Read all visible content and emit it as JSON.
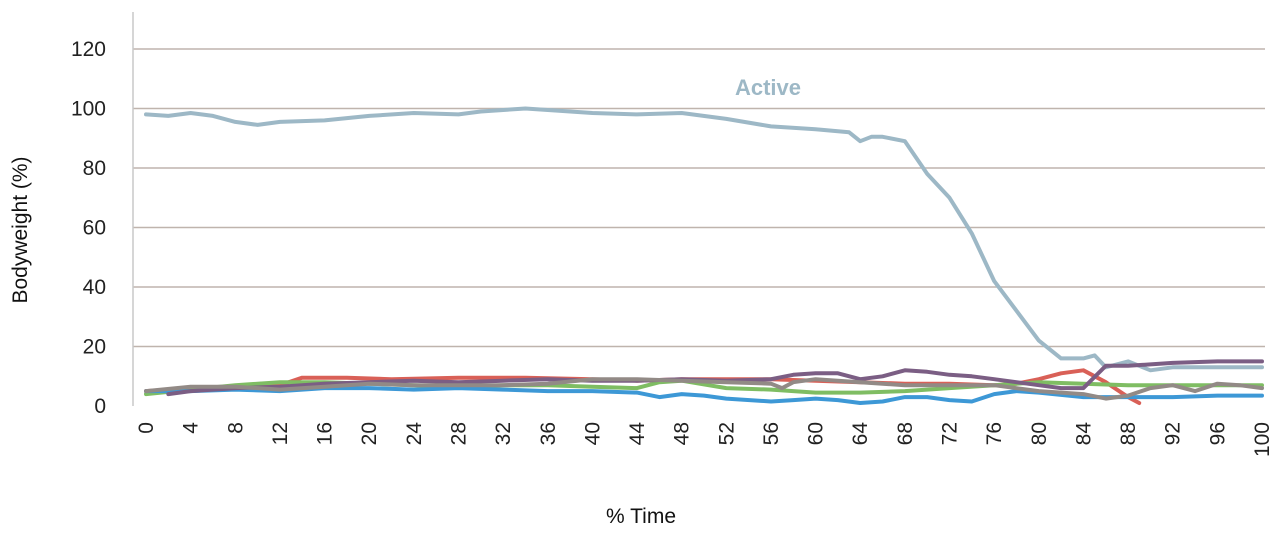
{
  "chart_data": {
    "type": "line",
    "xlabel": "% Time",
    "ylabel": "Bodyweight (%)",
    "xlim": [
      0,
      100
    ],
    "ylim": [
      0,
      120
    ],
    "x_ticks": [
      "0",
      "4",
      "8",
      "12",
      "16",
      "20",
      "24",
      "28",
      "32",
      "36",
      "40",
      "44",
      "48",
      "52",
      "56",
      "60",
      "64",
      "68",
      "72",
      "76",
      "80",
      "84",
      "88",
      "92",
      "96",
      "100"
    ],
    "y_ticks": [
      "0",
      "20",
      "40",
      "60",
      "80",
      "100",
      "120"
    ],
    "grid": "horizontal",
    "annotation": {
      "text": "Active",
      "color": "#9db8c6"
    },
    "series": [
      {
        "color": "#9db8c6",
        "points": [
          [
            0,
            98
          ],
          [
            2,
            97.5
          ],
          [
            4,
            98.5
          ],
          [
            6,
            97.5
          ],
          [
            8,
            95.5
          ],
          [
            10,
            94.5
          ],
          [
            12,
            95.5
          ],
          [
            16,
            96
          ],
          [
            20,
            97.5
          ],
          [
            24,
            98.5
          ],
          [
            28,
            98
          ],
          [
            30,
            99
          ],
          [
            34,
            100
          ],
          [
            36,
            99.5
          ],
          [
            40,
            98.5
          ],
          [
            44,
            98
          ],
          [
            48,
            98.5
          ],
          [
            52,
            96.5
          ],
          [
            56,
            94
          ],
          [
            60,
            93
          ],
          [
            63,
            92
          ],
          [
            64,
            89
          ],
          [
            65,
            90.5
          ],
          [
            66,
            90.5
          ],
          [
            68,
            89
          ],
          [
            70,
            78
          ],
          [
            72,
            70
          ],
          [
            74,
            58
          ],
          [
            76,
            42
          ],
          [
            78,
            32
          ],
          [
            80,
            22
          ],
          [
            82,
            16
          ],
          [
            84,
            16
          ],
          [
            85,
            17
          ],
          [
            86,
            13
          ],
          [
            88,
            15
          ],
          [
            90,
            12
          ],
          [
            92,
            13
          ],
          [
            96,
            13
          ],
          [
            100,
            13
          ]
        ]
      },
      {
        "color": "#d96057",
        "points": [
          [
            0,
            5
          ],
          [
            4,
            6
          ],
          [
            8,
            6.5
          ],
          [
            12,
            7
          ],
          [
            14,
            9.5
          ],
          [
            18,
            9.5
          ],
          [
            22,
            9
          ],
          [
            28,
            9.5
          ],
          [
            34,
            9.5
          ],
          [
            40,
            9
          ],
          [
            44,
            8.5
          ],
          [
            48,
            9
          ],
          [
            52,
            9
          ],
          [
            56,
            9
          ],
          [
            60,
            8.5
          ],
          [
            64,
            8
          ],
          [
            68,
            7.5
          ],
          [
            72,
            7.5
          ],
          [
            76,
            7
          ],
          [
            78,
            7.5
          ],
          [
            80,
            9
          ],
          [
            82,
            11
          ],
          [
            84,
            12
          ],
          [
            86,
            8
          ],
          [
            88,
            3
          ],
          [
            89,
            1
          ]
        ]
      },
      {
        "color": "#7fbd63",
        "points": [
          [
            0,
            4
          ],
          [
            4,
            5.5
          ],
          [
            8,
            7
          ],
          [
            12,
            8
          ],
          [
            16,
            8
          ],
          [
            20,
            7.5
          ],
          [
            24,
            7
          ],
          [
            28,
            6.5
          ],
          [
            32,
            7
          ],
          [
            36,
            7
          ],
          [
            40,
            6.5
          ],
          [
            44,
            6
          ],
          [
            46,
            8
          ],
          [
            48,
            8.5
          ],
          [
            52,
            6
          ],
          [
            56,
            5.5
          ],
          [
            60,
            4.5
          ],
          [
            64,
            4.5
          ],
          [
            68,
            5
          ],
          [
            72,
            6
          ],
          [
            76,
            7
          ],
          [
            80,
            8
          ],
          [
            84,
            7.5
          ],
          [
            88,
            7
          ],
          [
            92,
            7
          ],
          [
            96,
            7
          ],
          [
            100,
            7
          ]
        ]
      },
      {
        "color": "#3d98d6",
        "points": [
          [
            0,
            5
          ],
          [
            4,
            5
          ],
          [
            8,
            5.5
          ],
          [
            12,
            5
          ],
          [
            16,
            6
          ],
          [
            20,
            6
          ],
          [
            24,
            5.5
          ],
          [
            28,
            6
          ],
          [
            32,
            5.5
          ],
          [
            36,
            5
          ],
          [
            40,
            5
          ],
          [
            44,
            4.5
          ],
          [
            46,
            3
          ],
          [
            48,
            4
          ],
          [
            50,
            3.5
          ],
          [
            52,
            2.5
          ],
          [
            56,
            1.5
          ],
          [
            58,
            2
          ],
          [
            60,
            2.5
          ],
          [
            62,
            2
          ],
          [
            64,
            1
          ],
          [
            66,
            1.5
          ],
          [
            68,
            3
          ],
          [
            70,
            3
          ],
          [
            72,
            2
          ],
          [
            74,
            1.5
          ],
          [
            76,
            4
          ],
          [
            78,
            5
          ],
          [
            80,
            4.5
          ],
          [
            84,
            3
          ],
          [
            88,
            3
          ],
          [
            92,
            3
          ],
          [
            96,
            3.5
          ],
          [
            100,
            3.5
          ]
        ]
      },
      {
        "color": "#7b5e84",
        "points": [
          [
            2,
            4
          ],
          [
            4,
            5
          ],
          [
            8,
            6
          ],
          [
            12,
            6.5
          ],
          [
            16,
            7.5
          ],
          [
            20,
            8
          ],
          [
            24,
            8.5
          ],
          [
            28,
            8
          ],
          [
            32,
            8.5
          ],
          [
            36,
            9
          ],
          [
            40,
            8.5
          ],
          [
            44,
            8.5
          ],
          [
            48,
            9
          ],
          [
            52,
            8.5
          ],
          [
            56,
            9
          ],
          [
            58,
            10.5
          ],
          [
            60,
            11
          ],
          [
            62,
            11
          ],
          [
            64,
            9
          ],
          [
            66,
            10
          ],
          [
            68,
            12
          ],
          [
            70,
            11.5
          ],
          [
            72,
            10.5
          ],
          [
            74,
            10
          ],
          [
            76,
            9
          ],
          [
            78,
            8
          ],
          [
            80,
            7
          ],
          [
            82,
            6
          ],
          [
            84,
            6
          ],
          [
            86,
            13.5
          ],
          [
            88,
            13.5
          ],
          [
            90,
            14
          ],
          [
            92,
            14.5
          ],
          [
            96,
            15
          ],
          [
            100,
            15
          ]
        ]
      },
      {
        "color": "#928a86",
        "points": [
          [
            0,
            5
          ],
          [
            4,
            6.5
          ],
          [
            8,
            6.5
          ],
          [
            12,
            5.5
          ],
          [
            16,
            6.5
          ],
          [
            20,
            7.5
          ],
          [
            24,
            7
          ],
          [
            28,
            7
          ],
          [
            32,
            7
          ],
          [
            36,
            7.5
          ],
          [
            40,
            9
          ],
          [
            44,
            9
          ],
          [
            48,
            8.5
          ],
          [
            52,
            8
          ],
          [
            56,
            7.5
          ],
          [
            57,
            6
          ],
          [
            58,
            8
          ],
          [
            60,
            9
          ],
          [
            62,
            8.5
          ],
          [
            64,
            8
          ],
          [
            68,
            7
          ],
          [
            72,
            7
          ],
          [
            76,
            7
          ],
          [
            80,
            5
          ],
          [
            84,
            4
          ],
          [
            86,
            2.5
          ],
          [
            88,
            3.5
          ],
          [
            90,
            6
          ],
          [
            92,
            7
          ],
          [
            94,
            5
          ],
          [
            96,
            7.5
          ],
          [
            98,
            7
          ],
          [
            100,
            6
          ]
        ]
      }
    ]
  }
}
